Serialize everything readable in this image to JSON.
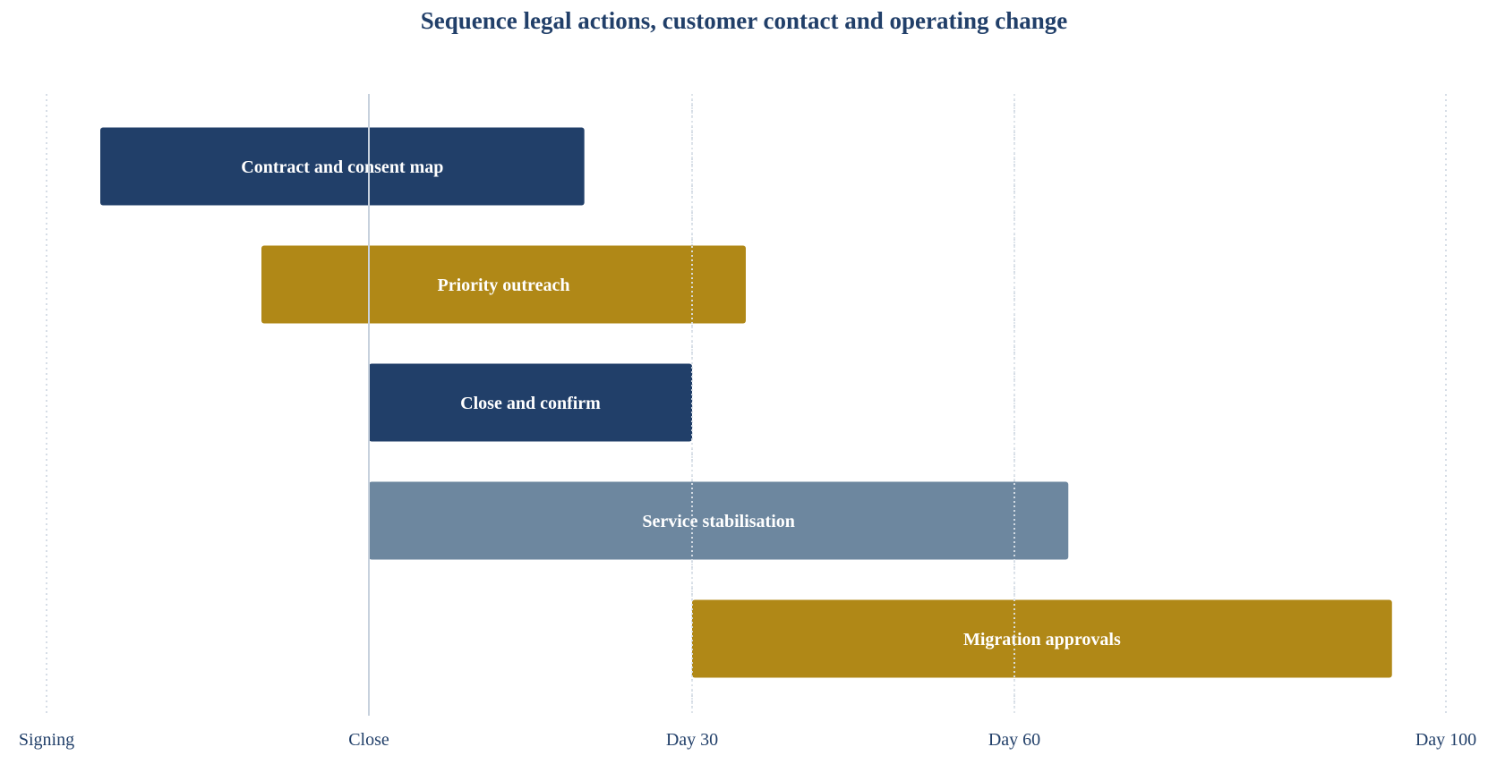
{
  "chart_data": {
    "type": "gantt",
    "title": "Sequence legal actions, customer contact and operating change",
    "x_ticks": [
      {
        "value": -30,
        "label": "Signing"
      },
      {
        "value": 0,
        "label": "Close"
      },
      {
        "value": 30,
        "label": "Day 30"
      },
      {
        "value": 60,
        "label": "Day 60"
      },
      {
        "value": 100,
        "label": "Day 100"
      }
    ],
    "xlim": [
      -30,
      100
    ],
    "x_unit": "days relative to close",
    "grid": "vertical dotted",
    "reference_line": {
      "value": 0,
      "label": "Close"
    },
    "tasks": [
      {
        "name": "Contract and consent map",
        "start": -25,
        "end": 20,
        "color": "#213f69"
      },
      {
        "name": "Priority outreach",
        "start": -10,
        "end": 35,
        "color": "#b08817"
      },
      {
        "name": "Close and confirm",
        "start": 0,
        "end": 30,
        "color": "#213f69"
      },
      {
        "name": "Service stabilisation",
        "start": 0,
        "end": 65,
        "color": "#6d879f"
      },
      {
        "name": "Migration approvals",
        "start": 30,
        "end": 95,
        "color": "#b08817"
      }
    ]
  }
}
